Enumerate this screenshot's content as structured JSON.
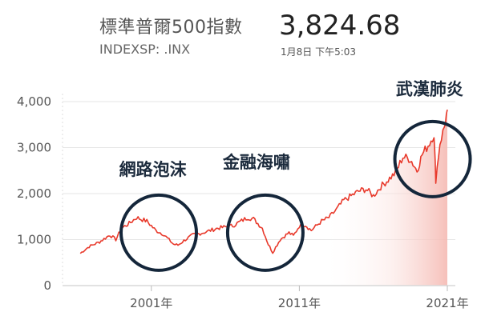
{
  "header": {
    "index_name": "標準普爾500指數",
    "ticker": "INDEXSP: .INX",
    "price": "3,824.68",
    "timestamp": "1月8日 下午5:03"
  },
  "colors": {
    "line": "#e8392b",
    "fill": "#f7c9c4",
    "circle": "#14263a",
    "grid": "#e6e6e6",
    "axis": "#d8d8d8"
  },
  "chart_data": {
    "type": "line",
    "title": "",
    "xlabel": "",
    "ylabel": "",
    "ylim": [
      0,
      4000
    ],
    "yticks": [
      {
        "value": 0,
        "label": "0"
      },
      {
        "value": 1000,
        "label": "1,000"
      },
      {
        "value": 2000,
        "label": "2,000"
      },
      {
        "value": 3000,
        "label": "3,000"
      },
      {
        "value": 4000,
        "label": "4,000"
      }
    ],
    "xticks": [
      {
        "value": 2001,
        "label": "2001年"
      },
      {
        "value": 2011,
        "label": "2011年"
      },
      {
        "value": 2021,
        "label": "2021年"
      }
    ],
    "grid": true,
    "series": [
      {
        "x": [
          1996.2,
          1996.8,
          1997.5,
          1998.2,
          1998.6,
          1999.0,
          1999.5,
          2000.0,
          2000.7,
          2001.3,
          2001.8,
          2002.5,
          2002.8,
          2003.3,
          2003.8,
          2004.5,
          2005.5,
          2006.5,
          2007.5,
          2007.9,
          2008.5,
          2008.9,
          2009.2,
          2009.7,
          2010.3,
          2010.6,
          2011.0,
          2011.4,
          2011.8,
          2012.5,
          2013.0,
          2013.5,
          2014.0,
          2014.5,
          2015.0,
          2015.5,
          2016.0,
          2016.5,
          2017.0,
          2017.5,
          2018.0,
          2018.5,
          2018.95,
          2019.3,
          2019.8,
          2020.1,
          2020.22,
          2020.5,
          2020.8,
          2021.0
        ],
        "y": [
          700,
          850,
          950,
          1100,
          1000,
          1250,
          1350,
          1480,
          1400,
          1200,
          1120,
          900,
          880,
          1000,
          1100,
          1150,
          1250,
          1300,
          1480,
          1450,
          1250,
          900,
          720,
          1000,
          1150,
          1080,
          1300,
          1320,
          1200,
          1400,
          1480,
          1650,
          1850,
          1950,
          2050,
          2100,
          1950,
          2150,
          2300,
          2450,
          2800,
          2750,
          2500,
          2850,
          3100,
          3300,
          2300,
          3100,
          3450,
          3824
        ]
      }
    ],
    "annotations": [
      {
        "text": "網路泡沫",
        "x": 2001.5,
        "y": 1150,
        "label_x": 2001.1,
        "label_y": 2400
      },
      {
        "text": "金融海嘯",
        "x": 2008.7,
        "y": 1150,
        "label_x": 2008.1,
        "label_y": 2560
      },
      {
        "text": "武漢肺炎",
        "x": 2020.0,
        "y": 2750,
        "label_x": 2019.8,
        "label_y": 4150
      }
    ]
  }
}
